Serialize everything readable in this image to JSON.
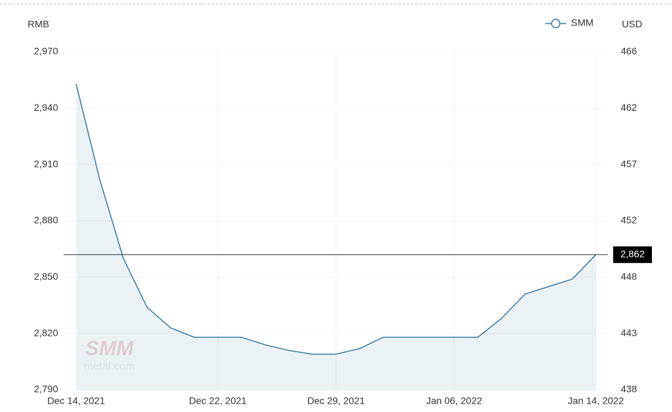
{
  "chart_data": {
    "type": "area",
    "y_axis_label": "RMB",
    "y2_axis_label": "USD",
    "categories": [
      "Dec 14, 2021",
      null,
      null,
      null,
      null,
      null,
      "Dec 22, 2021",
      null,
      null,
      null,
      null,
      "Dec 29, 2021",
      null,
      null,
      null,
      null,
      "Jan 06, 2022",
      null,
      null,
      null,
      null,
      null,
      "Jan 14, 2022"
    ],
    "series": [
      {
        "name": "SMM",
        "color": "#3a7ca5",
        "values": [
          2953,
          2902,
          2860,
          2834,
          2823,
          2818,
          2818,
          2818,
          2814,
          2811,
          2809,
          2809,
          2812,
          2818,
          2818,
          2818,
          2818,
          2818,
          2828,
          2841,
          2845,
          2849,
          2862
        ]
      }
    ],
    "marker_line": {
      "value": 2862,
      "label": "2,862"
    },
    "ylim": [
      2790,
      2970
    ],
    "yticks": [
      {
        "value": 2790,
        "label": "2,790"
      },
      {
        "value": 2820,
        "label": "2,820"
      },
      {
        "value": 2850,
        "label": "2,850"
      },
      {
        "value": 2880,
        "label": "2,880"
      },
      {
        "value": 2910,
        "label": "2,910"
      },
      {
        "value": 2940,
        "label": "2,940"
      },
      {
        "value": 2970,
        "label": "2,970"
      }
    ],
    "y2lim": [
      438.2,
      466.4
    ],
    "y2ticks": [
      {
        "value": 438.2,
        "label": "438"
      },
      {
        "value": 442.9,
        "label": "443"
      },
      {
        "value": 447.6,
        "label": "448"
      },
      {
        "value": 452.3,
        "label": "452"
      },
      {
        "value": 457.0,
        "label": "457"
      },
      {
        "value": 461.7,
        "label": "462"
      },
      {
        "value": 466.4,
        "label": "466"
      }
    ],
    "grid": true,
    "legend": "top-right",
    "watermark": [
      "SMM",
      "metal.com"
    ]
  }
}
